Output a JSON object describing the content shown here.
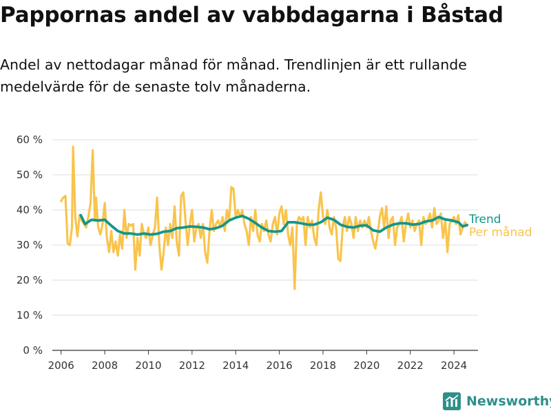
{
  "title": "Pappornas andel av vabbdagarna i Båstad",
  "subtitle": "Andel av nettodagar månad för månad. Trendlinjen är ett rullande medelvärde för de senaste tolv månaderna.",
  "brand": {
    "name": "Newsworthy",
    "color": "#2e8f8a",
    "icon": "newsworthy-logo-icon"
  },
  "colors": {
    "per_manad": "#f9c44d",
    "trend": "#13968a",
    "grid": "#dddddd",
    "axis": "#333333"
  },
  "chart_data": {
    "type": "line",
    "xlabel": "",
    "ylabel": "",
    "xlim": [
      2005.6,
      2025.1
    ],
    "ylim": [
      0,
      60
    ],
    "x_ticks": [
      2006,
      2008,
      2010,
      2012,
      2014,
      2016,
      2018,
      2020,
      2022,
      2024
    ],
    "y_ticks": [
      0,
      10,
      20,
      30,
      40,
      50,
      60
    ],
    "y_tick_labels": [
      "0 %",
      "10 %",
      "20 %",
      "30 %",
      "40 %",
      "50 %",
      "60 %"
    ],
    "grid": true,
    "legend_position": "right",
    "series": [
      {
        "name": "Trend",
        "points": [
          [
            2006.9,
            38.5
          ],
          [
            2007.1,
            36.0
          ],
          [
            2007.4,
            37.2
          ],
          [
            2007.7,
            37.0
          ],
          [
            2008.0,
            37.2
          ],
          [
            2008.3,
            35.5
          ],
          [
            2008.6,
            34.0
          ],
          [
            2008.9,
            33.3
          ],
          [
            2009.2,
            33.3
          ],
          [
            2009.5,
            33.0
          ],
          [
            2009.8,
            33.3
          ],
          [
            2010.1,
            33.0
          ],
          [
            2010.4,
            33.2
          ],
          [
            2010.7,
            33.8
          ],
          [
            2011.0,
            34.0
          ],
          [
            2011.3,
            34.8
          ],
          [
            2011.6,
            35.0
          ],
          [
            2011.9,
            35.3
          ],
          [
            2012.2,
            35.2
          ],
          [
            2012.5,
            35.0
          ],
          [
            2012.8,
            34.5
          ],
          [
            2013.1,
            34.8
          ],
          [
            2013.4,
            35.5
          ],
          [
            2013.7,
            37.0
          ],
          [
            2014.0,
            37.8
          ],
          [
            2014.3,
            38.3
          ],
          [
            2014.6,
            37.5
          ],
          [
            2014.9,
            36.3
          ],
          [
            2015.2,
            35.0
          ],
          [
            2015.5,
            34.0
          ],
          [
            2015.8,
            33.8
          ],
          [
            2016.1,
            34.0
          ],
          [
            2016.4,
            36.5
          ],
          [
            2016.7,
            36.5
          ],
          [
            2017.0,
            36.2
          ],
          [
            2017.3,
            35.8
          ],
          [
            2017.6,
            35.8
          ],
          [
            2017.9,
            36.5
          ],
          [
            2018.2,
            37.8
          ],
          [
            2018.5,
            37.2
          ],
          [
            2018.8,
            35.8
          ],
          [
            2019.1,
            35.2
          ],
          [
            2019.4,
            35.0
          ],
          [
            2019.7,
            35.5
          ],
          [
            2020.0,
            35.6
          ],
          [
            2020.3,
            34.2
          ],
          [
            2020.6,
            33.8
          ],
          [
            2020.9,
            35.0
          ],
          [
            2021.2,
            35.8
          ],
          [
            2021.5,
            36.2
          ],
          [
            2021.8,
            36.2
          ],
          [
            2022.1,
            35.8
          ],
          [
            2022.4,
            36.0
          ],
          [
            2022.7,
            36.7
          ],
          [
            2023.0,
            37.0
          ],
          [
            2023.3,
            38.0
          ],
          [
            2023.6,
            37.3
          ],
          [
            2023.9,
            37.0
          ],
          [
            2024.2,
            36.5
          ],
          [
            2024.4,
            35.3
          ],
          [
            2024.6,
            35.7
          ]
        ]
      },
      {
        "name": "Per månad",
        "points": [
          [
            2006.0,
            42.5
          ],
          [
            2006.1,
            43.5
          ],
          [
            2006.2,
            44.0
          ],
          [
            2006.3,
            30.5
          ],
          [
            2006.4,
            30.0
          ],
          [
            2006.5,
            35.0
          ],
          [
            2006.55,
            58.0
          ],
          [
            2006.65,
            38.0
          ],
          [
            2006.75,
            32.5
          ],
          [
            2006.85,
            38.5
          ],
          [
            2006.95,
            37.0
          ],
          [
            2007.05,
            36.0
          ],
          [
            2007.15,
            35.0
          ],
          [
            2007.25,
            38.0
          ],
          [
            2007.35,
            42.0
          ],
          [
            2007.45,
            57.0
          ],
          [
            2007.55,
            37.0
          ],
          [
            2007.6,
            43.5
          ],
          [
            2007.7,
            35.0
          ],
          [
            2007.8,
            33.0
          ],
          [
            2007.9,
            36.0
          ],
          [
            2008.0,
            42.0
          ],
          [
            2008.1,
            32.0
          ],
          [
            2008.2,
            28.0
          ],
          [
            2008.3,
            34.0
          ],
          [
            2008.4,
            28.0
          ],
          [
            2008.5,
            31.0
          ],
          [
            2008.6,
            27.0
          ],
          [
            2008.7,
            33.0
          ],
          [
            2008.8,
            29.0
          ],
          [
            2008.9,
            40.0
          ],
          [
            2009.0,
            32.0
          ],
          [
            2009.1,
            36.0
          ],
          [
            2009.2,
            35.5
          ],
          [
            2009.3,
            36.0
          ],
          [
            2009.4,
            23.0
          ],
          [
            2009.5,
            32.0
          ],
          [
            2009.6,
            27.0
          ],
          [
            2009.7,
            36.0
          ],
          [
            2009.8,
            33.0
          ],
          [
            2009.9,
            32.0
          ],
          [
            2010.0,
            35.0
          ],
          [
            2010.1,
            30.0
          ],
          [
            2010.2,
            33.0
          ],
          [
            2010.3,
            35.0
          ],
          [
            2010.4,
            43.5
          ],
          [
            2010.5,
            30.0
          ],
          [
            2010.6,
            23.0
          ],
          [
            2010.7,
            28.0
          ],
          [
            2010.8,
            35.0
          ],
          [
            2010.9,
            30.0
          ],
          [
            2011.0,
            36.0
          ],
          [
            2011.1,
            32.0
          ],
          [
            2011.2,
            41.0
          ],
          [
            2011.3,
            31.0
          ],
          [
            2011.4,
            27.0
          ],
          [
            2011.5,
            44.0
          ],
          [
            2011.6,
            45.0
          ],
          [
            2011.7,
            37.0
          ],
          [
            2011.8,
            30.0
          ],
          [
            2011.9,
            36.0
          ],
          [
            2012.0,
            40.0
          ],
          [
            2012.1,
            31.0
          ],
          [
            2012.2,
            35.0
          ],
          [
            2012.3,
            36.0
          ],
          [
            2012.4,
            32.0
          ],
          [
            2012.5,
            36.0
          ],
          [
            2012.6,
            28.0
          ],
          [
            2012.7,
            25.0
          ],
          [
            2012.8,
            34.0
          ],
          [
            2012.9,
            40.0
          ],
          [
            2013.0,
            34.0
          ],
          [
            2013.1,
            36.0
          ],
          [
            2013.2,
            37.0
          ],
          [
            2013.3,
            35.0
          ],
          [
            2013.4,
            38.0
          ],
          [
            2013.5,
            34.0
          ],
          [
            2013.6,
            40.0
          ],
          [
            2013.7,
            37.0
          ],
          [
            2013.8,
            46.5
          ],
          [
            2013.9,
            46.0
          ],
          [
            2014.0,
            38.0
          ],
          [
            2014.1,
            40.0
          ],
          [
            2014.2,
            38.0
          ],
          [
            2014.3,
            40.0
          ],
          [
            2014.4,
            36.0
          ],
          [
            2014.5,
            34.0
          ],
          [
            2014.6,
            30.0
          ],
          [
            2014.7,
            38.0
          ],
          [
            2014.8,
            34.0
          ],
          [
            2014.9,
            40.0
          ],
          [
            2015.0,
            33.0
          ],
          [
            2015.1,
            31.0
          ],
          [
            2015.2,
            36.0
          ],
          [
            2015.3,
            34.0
          ],
          [
            2015.4,
            37.0
          ],
          [
            2015.5,
            33.0
          ],
          [
            2015.6,
            31.0
          ],
          [
            2015.7,
            36.0
          ],
          [
            2015.8,
            38.0
          ],
          [
            2015.9,
            33.0
          ],
          [
            2016.0,
            39.0
          ],
          [
            2016.1,
            41.0
          ],
          [
            2016.2,
            36.0
          ],
          [
            2016.3,
            40.0
          ],
          [
            2016.4,
            33.0
          ],
          [
            2016.5,
            30.0
          ],
          [
            2016.6,
            35.0
          ],
          [
            2016.7,
            17.5
          ],
          [
            2016.8,
            36.0
          ],
          [
            2016.9,
            38.0
          ],
          [
            2017.0,
            37.0
          ],
          [
            2017.1,
            38.0
          ],
          [
            2017.2,
            30.0
          ],
          [
            2017.3,
            38.0
          ],
          [
            2017.4,
            35.0
          ],
          [
            2017.5,
            37.0
          ],
          [
            2017.6,
            32.0
          ],
          [
            2017.7,
            30.0
          ],
          [
            2017.8,
            40.0
          ],
          [
            2017.9,
            45.0
          ],
          [
            2018.0,
            38.0
          ],
          [
            2018.1,
            36.0
          ],
          [
            2018.2,
            40.0
          ],
          [
            2018.3,
            35.0
          ],
          [
            2018.4,
            33.0
          ],
          [
            2018.5,
            38.0
          ],
          [
            2018.6,
            35.0
          ],
          [
            2018.7,
            26.0
          ],
          [
            2018.8,
            25.5
          ],
          [
            2018.9,
            35.0
          ],
          [
            2019.0,
            38.0
          ],
          [
            2019.1,
            34.0
          ],
          [
            2019.2,
            38.0
          ],
          [
            2019.3,
            36.0
          ],
          [
            2019.4,
            32.0
          ],
          [
            2019.5,
            38.0
          ],
          [
            2019.6,
            34.0
          ],
          [
            2019.7,
            37.0
          ],
          [
            2019.8,
            35.0
          ],
          [
            2019.9,
            37.0
          ],
          [
            2020.0,
            35.0
          ],
          [
            2020.1,
            38.0
          ],
          [
            2020.2,
            34.0
          ],
          [
            2020.3,
            31.0
          ],
          [
            2020.4,
            29.0
          ],
          [
            2020.5,
            33.0
          ],
          [
            2020.6,
            38.0
          ],
          [
            2020.7,
            40.5
          ],
          [
            2020.8,
            35.0
          ],
          [
            2020.9,
            41.0
          ],
          [
            2021.0,
            32.0
          ],
          [
            2021.1,
            37.0
          ],
          [
            2021.2,
            38.0
          ],
          [
            2021.3,
            30.0
          ],
          [
            2021.4,
            35.0
          ],
          [
            2021.5,
            36.0
          ],
          [
            2021.6,
            38.0
          ],
          [
            2021.7,
            31.0
          ],
          [
            2021.8,
            36.0
          ],
          [
            2021.9,
            39.0
          ],
          [
            2022.0,
            35.0
          ],
          [
            2022.1,
            37.0
          ],
          [
            2022.2,
            34.0
          ],
          [
            2022.3,
            36.0
          ],
          [
            2022.4,
            37.0
          ],
          [
            2022.5,
            30.0
          ],
          [
            2022.6,
            38.0
          ],
          [
            2022.7,
            36.0
          ],
          [
            2022.8,
            37.0
          ],
          [
            2022.9,
            39.0
          ],
          [
            2023.0,
            35.0
          ],
          [
            2023.1,
            40.5
          ],
          [
            2023.2,
            36.0
          ],
          [
            2023.3,
            37.0
          ],
          [
            2023.4,
            39.0
          ],
          [
            2023.5,
            32.0
          ],
          [
            2023.6,
            37.0
          ],
          [
            2023.7,
            28.0
          ],
          [
            2023.8,
            36.0
          ],
          [
            2023.9,
            37.0
          ],
          [
            2024.0,
            38.0
          ],
          [
            2024.1,
            36.0
          ],
          [
            2024.2,
            38.5
          ],
          [
            2024.3,
            33.0
          ],
          [
            2024.4,
            35.0
          ],
          [
            2024.5,
            36.5
          ],
          [
            2024.6,
            35.5
          ]
        ]
      }
    ]
  }
}
